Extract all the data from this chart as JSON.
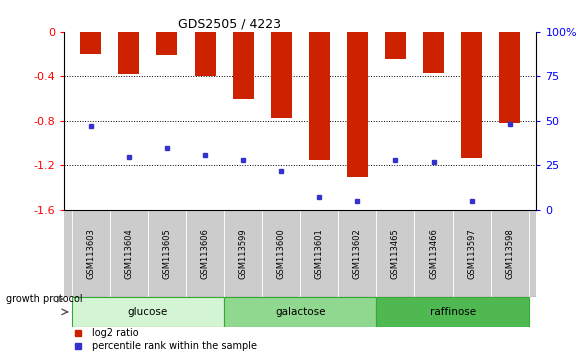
{
  "title": "GDS2505 / 4223",
  "samples": [
    "GSM113603",
    "GSM113604",
    "GSM113605",
    "GSM113606",
    "GSM113599",
    "GSM113600",
    "GSM113601",
    "GSM113602",
    "GSM113465",
    "GSM113466",
    "GSM113597",
    "GSM113598"
  ],
  "log2_ratio": [
    -0.2,
    -0.38,
    -0.21,
    -0.4,
    -0.6,
    -0.77,
    -1.15,
    -1.3,
    -0.24,
    -0.37,
    -1.13,
    -0.82
  ],
  "percentile_rank": [
    47,
    30,
    35,
    31,
    28,
    22,
    7,
    5,
    28,
    27,
    5,
    48
  ],
  "groups": [
    {
      "name": "glucose",
      "start": 0,
      "end": 3,
      "color": "#d4f5d4"
    },
    {
      "name": "galactose",
      "start": 4,
      "end": 7,
      "color": "#90d890"
    },
    {
      "name": "raffinose",
      "start": 8,
      "end": 11,
      "color": "#50b850"
    }
  ],
  "ylim_left": [
    -1.6,
    0.0
  ],
  "ylim_right": [
    0,
    100
  ],
  "bar_color": "#cc2200",
  "marker_color": "#3333cc",
  "background_color": "#ffffff",
  "left_ticks": [
    0,
    -0.4,
    -0.8,
    -1.2,
    -1.6
  ],
  "right_ticks": [
    100,
    75,
    50,
    25,
    0
  ],
  "bar_width": 0.55,
  "legend_items": [
    {
      "color": "#cc2200",
      "label": "log2 ratio"
    },
    {
      "color": "#3333cc",
      "label": "percentile rank within the sample"
    }
  ]
}
